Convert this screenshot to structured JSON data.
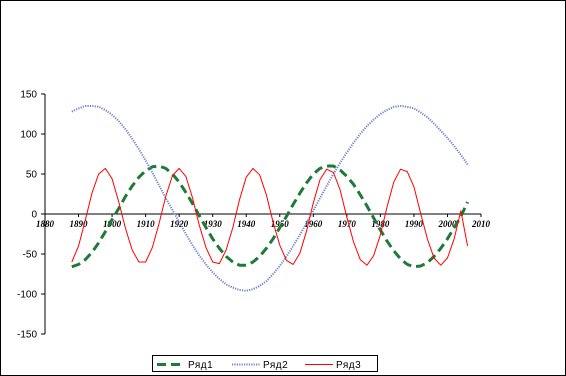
{
  "chart_data": {
    "type": "line",
    "title": "",
    "xlabel": "",
    "ylabel": "",
    "xlim": [
      1880,
      2010
    ],
    "ylim": [
      -150,
      150
    ],
    "x_ticks": [
      "1880",
      "1890",
      "1900",
      "1910",
      "1920",
      "1930",
      "1940",
      "1950",
      "1960",
      "1970",
      "1980",
      "1990",
      "2000",
      "2010"
    ],
    "y_ticks": [
      "150",
      "100",
      "50",
      "0",
      "-50",
      "-100",
      "-150"
    ],
    "grid": false,
    "legend_position": "bottom",
    "x": [
      1888,
      1890,
      1892,
      1894,
      1896,
      1898,
      1900,
      1902,
      1904,
      1906,
      1908,
      1910,
      1912,
      1914,
      1916,
      1918,
      1920,
      1922,
      1924,
      1926,
      1928,
      1930,
      1932,
      1934,
      1936,
      1938,
      1940,
      1942,
      1944,
      1946,
      1948,
      1950,
      1952,
      1954,
      1956,
      1958,
      1960,
      1962,
      1964,
      1966,
      1968,
      1970,
      1972,
      1974,
      1976,
      1978,
      1980,
      1982,
      1984,
      1986,
      1988,
      1990,
      1992,
      1994,
      1996,
      1998,
      2000,
      2002,
      2004,
      2006
    ],
    "series": [
      {
        "name": "Ряд1",
        "color": "#1f7a3a",
        "dash": "dashed",
        "values": [
          -66,
          -63,
          -57,
          -48,
          -36,
          -22,
          -7,
          7,
          22,
          35,
          46,
          54,
          59,
          60,
          57,
          50,
          40,
          27,
          13,
          -2,
          -17,
          -31,
          -43,
          -53,
          -60,
          -64,
          -64,
          -60,
          -53,
          -43,
          -31,
          -17,
          -3,
          12,
          26,
          39,
          50,
          57,
          60,
          60,
          55,
          47,
          37,
          24,
          10,
          -5,
          -20,
          -34,
          -46,
          -56,
          -63,
          -66,
          -65,
          -61,
          -53,
          -43,
          -31,
          -17,
          -3,
          15
        ]
      },
      {
        "name": "Ряд2",
        "color": "#6f83c4",
        "dash": "dotted",
        "values": [
          128,
          132,
          135,
          135,
          134,
          130,
          124,
          116,
          106,
          94,
          81,
          67,
          52,
          36,
          20,
          5,
          -10,
          -25,
          -39,
          -52,
          -63,
          -73,
          -81,
          -88,
          -92,
          -95,
          -96,
          -94,
          -90,
          -84,
          -75,
          -65,
          -53,
          -40,
          -26,
          -11,
          4,
          20,
          35,
          50,
          64,
          77,
          89,
          100,
          110,
          118,
          125,
          130,
          134,
          135,
          134,
          132,
          127,
          121,
          113,
          104,
          95,
          85,
          74,
          62
        ]
      },
      {
        "name": "Ряд3",
        "color": "#ff0000",
        "dash": "solid",
        "values": [
          -60,
          -40,
          -8,
          26,
          50,
          57,
          44,
          15,
          -18,
          -45,
          -60,
          -60,
          -42,
          -12,
          22,
          48,
          57,
          47,
          20,
          -14,
          -42,
          -60,
          -62,
          -45,
          -17,
          18,
          46,
          57,
          49,
          24,
          -10,
          -39,
          -58,
          -63,
          -49,
          -21,
          14,
          43,
          56,
          52,
          30,
          -4,
          -35,
          -57,
          -64,
          -52,
          -26,
          9,
          40,
          56,
          53,
          34,
          1,
          -31,
          -55,
          -64,
          -55,
          -31,
          4,
          -40
        ]
      }
    ]
  }
}
